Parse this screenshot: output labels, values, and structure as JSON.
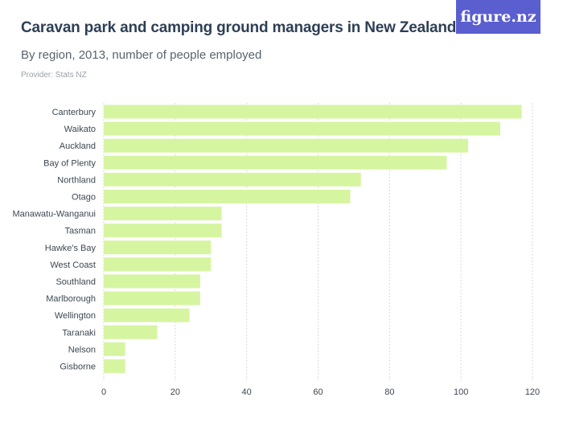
{
  "header": {
    "title": "Caravan park and camping ground managers in New Zealand",
    "subtitle": "By region, 2013, number of people employed",
    "provider": "Provider: Stats NZ",
    "logo": "figure.nz"
  },
  "colors": {
    "bar": "#d6f5a1",
    "grid": "#d9d9d9",
    "logo_bg": "#5a5ecf"
  },
  "chart_data": {
    "type": "bar",
    "orientation": "horizontal",
    "title": "Caravan park and camping ground managers in New Zealand",
    "subtitle": "By region, 2013, number of people employed",
    "xlabel": "",
    "ylabel": "",
    "xlim": [
      0,
      120
    ],
    "x_ticks": [
      0,
      20,
      40,
      60,
      80,
      100,
      120
    ],
    "grid": true,
    "categories": [
      "Canterbury",
      "Waikato",
      "Auckland",
      "Bay of Plenty",
      "Northland",
      "Otago",
      "Manawatu-Wanganui",
      "Tasman",
      "Hawke's Bay",
      "West Coast",
      "Southland",
      "Marlborough",
      "Wellington",
      "Taranaki",
      "Nelson",
      "Gisborne"
    ],
    "values": [
      117,
      111,
      102,
      96,
      72,
      69,
      33,
      33,
      30,
      30,
      27,
      27,
      24,
      15,
      6,
      6
    ]
  }
}
